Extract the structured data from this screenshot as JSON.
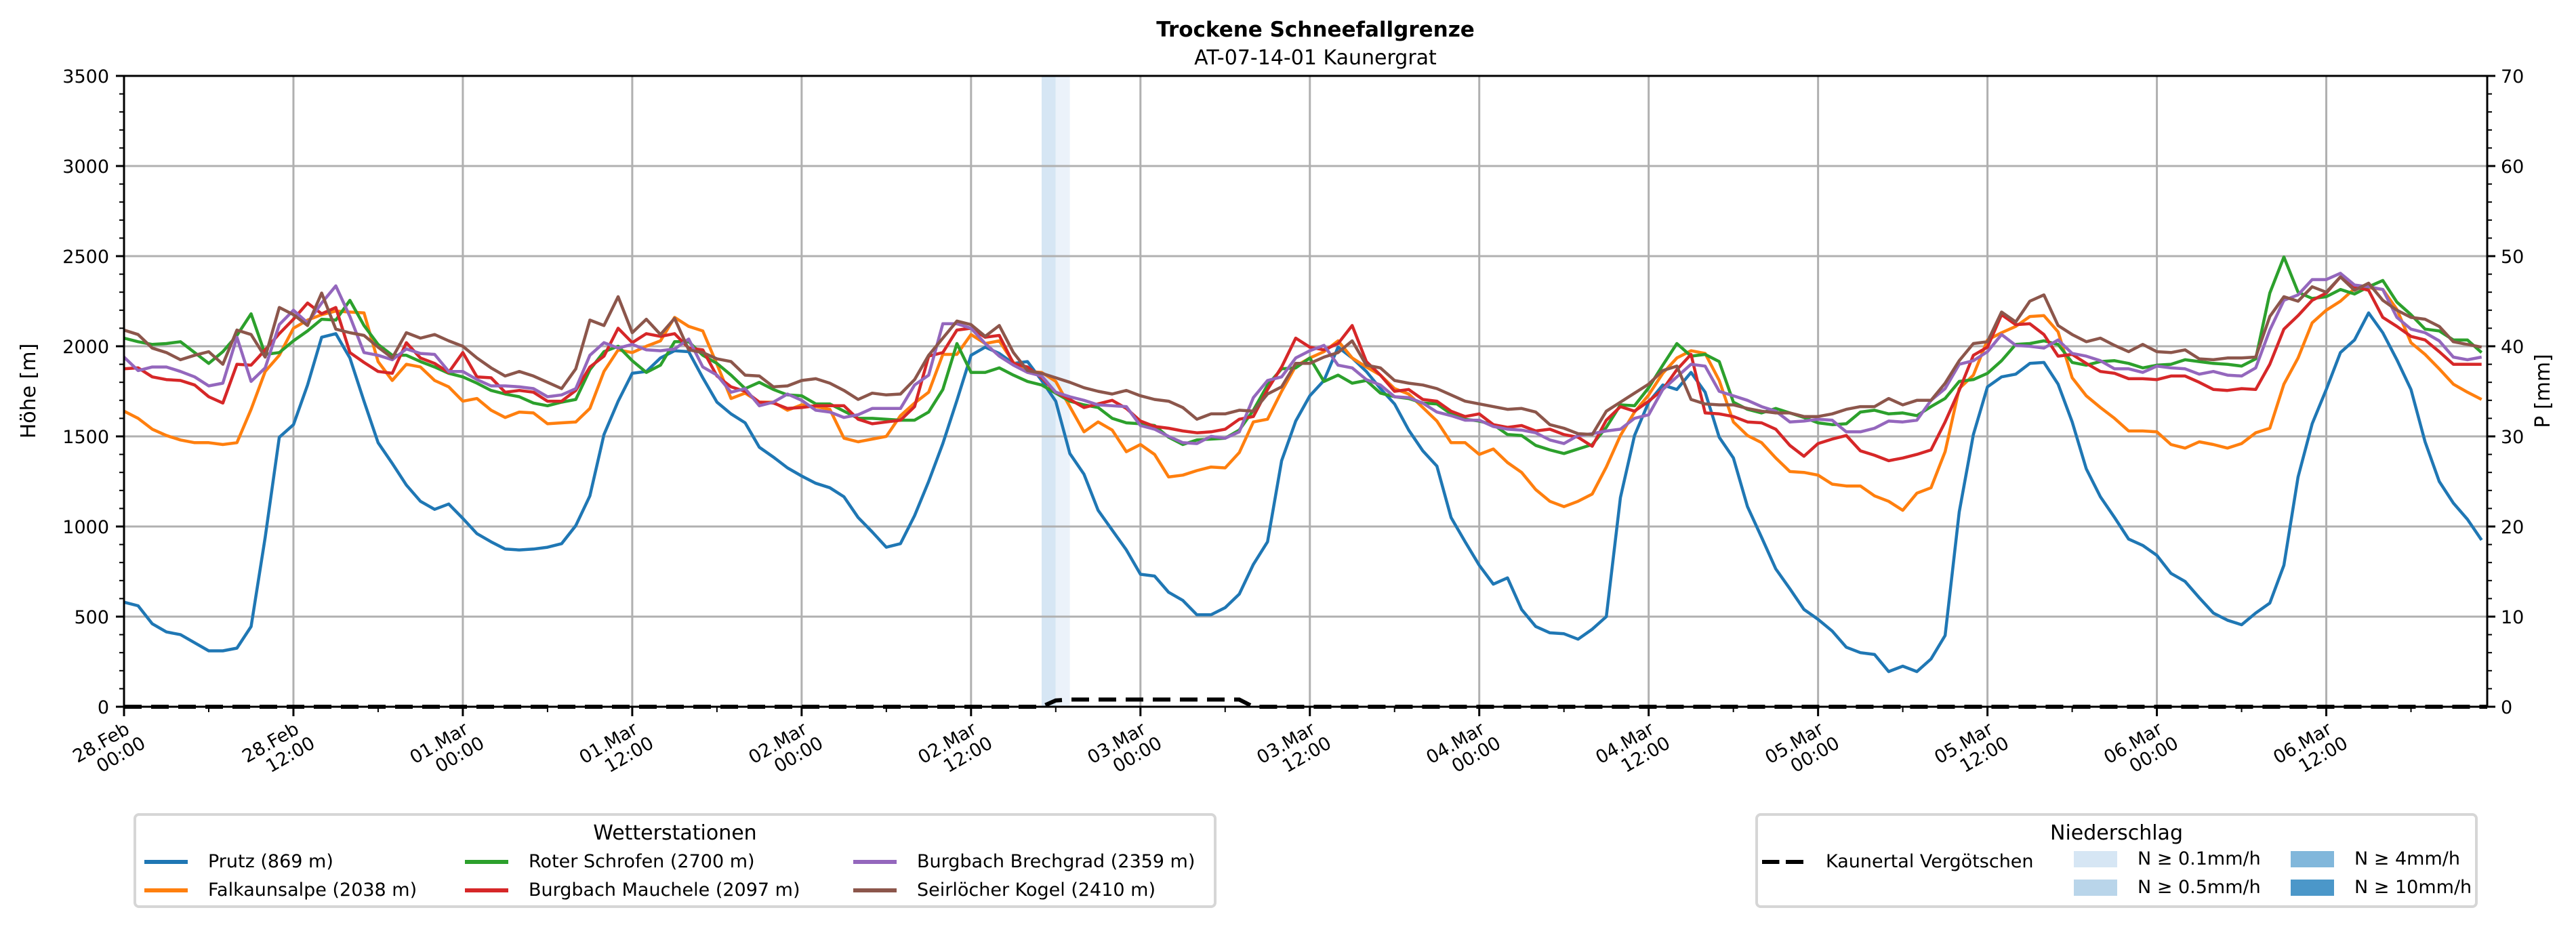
{
  "chart_data": {
    "type": "line",
    "title": "Trockene Schneefallgrenze",
    "subtitle": "AT-07-14-01 Kaunergrat",
    "ylabel": "Höhe [m]",
    "ylabel_right": "P [mm]",
    "ylim": [
      0,
      3500
    ],
    "ylim_right": [
      0,
      70
    ],
    "yticks": [
      "0",
      "500",
      "1000",
      "1500",
      "2000",
      "2500",
      "3000",
      "3500"
    ],
    "yticks_right": [
      "0",
      "10",
      "20",
      "30",
      "40",
      "50",
      "60",
      "70"
    ],
    "x_unit": "hours since 28.Feb 00:00",
    "xlim": [
      0,
      167.4
    ],
    "xticks": [
      {
        "hour": 0,
        "line1": "28.Feb",
        "line2": "00:00"
      },
      {
        "hour": 12,
        "line1": "28.Feb",
        "line2": "12:00"
      },
      {
        "hour": 24,
        "line1": "01.Mar",
        "line2": "00:00"
      },
      {
        "hour": 36,
        "line1": "01.Mar",
        "line2": "12:00"
      },
      {
        "hour": 48,
        "line1": "02.Mar",
        "line2": "00:00"
      },
      {
        "hour": 60,
        "line1": "02.Mar",
        "line2": "12:00"
      },
      {
        "hour": 72,
        "line1": "03.Mar",
        "line2": "00:00"
      },
      {
        "hour": 84,
        "line1": "03.Mar",
        "line2": "12:00"
      },
      {
        "hour": 96,
        "line1": "04.Mar",
        "line2": "00:00"
      },
      {
        "hour": 108,
        "line1": "04.Mar",
        "line2": "12:00"
      },
      {
        "hour": 120,
        "line1": "05.Mar",
        "line2": "00:00"
      },
      {
        "hour": 132,
        "line1": "05.Mar",
        "line2": "12:00"
      },
      {
        "hour": 144,
        "line1": "06.Mar",
        "line2": "00:00"
      },
      {
        "hour": 156,
        "line1": "06.Mar",
        "line2": "12:00"
      }
    ],
    "grid": true,
    "series": [
      {
        "name": "Prutz (869 m)",
        "color": "#1f77b4",
        "values": [
          580,
          560,
          460,
          415,
          400,
          355,
          310,
          310,
          325,
          445,
          940,
          1495,
          1565,
          1785,
          2050,
          2070,
          1935,
          1695,
          1465,
          1350,
          1230,
          1140,
          1095,
          1125,
          1045,
          960,
          915,
          875,
          870,
          875,
          885,
          905,
          1005,
          1170,
          1510,
          1695,
          1850,
          1860,
          1935,
          1975,
          1970,
          1825,
          1690,
          1625,
          1575,
          1440,
          1385,
          1325,
          1280,
          1240,
          1215,
          1165,
          1050,
          970,
          885,
          905,
          1060,
          1250,
          1460,
          1700,
          1950,
          1995,
          1960,
          1905,
          1915,
          1810,
          1695,
          1405,
          1290,
          1090,
          980,
          870,
          735,
          725,
          635,
          590,
          510,
          510,
          550,
          625,
          790,
          915,
          1365,
          1585,
          1725,
          1810,
          1995,
          1935,
          1860,
          1765,
          1680,
          1535,
          1420,
          1335,
          1050,
          915,
          785,
          680,
          715,
          540,
          445,
          410,
          405,
          375,
          430,
          500,
          1160,
          1505,
          1690,
          1785,
          1760,
          1855,
          1745,
          1495,
          1380,
          1110,
          940,
          765,
          655,
          540,
          485,
          420,
          330,
          300,
          290,
          195,
          225,
          195,
          265,
          395,
          1080,
          1510,
          1775,
          1830,
          1845,
          1905,
          1910,
          1790,
          1580,
          1320,
          1165,
          1050,
          930,
          895,
          840,
          740,
          695,
          605,
          520,
          480,
          455,
          520,
          575,
          785,
          1275,
          1570,
          1760,
          1965,
          2035,
          2185,
          2075,
          1925,
          1760,
          1470,
          1250,
          1130,
          1040,
          925
        ]
      },
      {
        "name": "Falkaunsalpe (2038 m)",
        "color": "#ff7f0e",
        "values": [
          1640,
          1600,
          1540,
          1505,
          1480,
          1465,
          1465,
          1455,
          1465,
          1650,
          1860,
          1950,
          2100,
          2145,
          2175,
          2195,
          2190,
          2185,
          1915,
          1810,
          1900,
          1885,
          1810,
          1775,
          1695,
          1710,
          1645,
          1605,
          1635,
          1630,
          1570,
          1575,
          1580,
          1655,
          1860,
          1980,
          1965,
          2000,
          2030,
          2160,
          2110,
          2085,
          1900,
          1710,
          1740,
          1690,
          1690,
          1645,
          1675,
          1665,
          1650,
          1490,
          1470,
          1485,
          1500,
          1615,
          1685,
          1745,
          1955,
          1955,
          2065,
          2015,
          2030,
          1910,
          1860,
          1855,
          1805,
          1665,
          1525,
          1580,
          1535,
          1415,
          1455,
          1400,
          1275,
          1285,
          1310,
          1330,
          1325,
          1410,
          1580,
          1595,
          1750,
          1890,
          1935,
          1970,
          2030,
          1935,
          1885,
          1840,
          1765,
          1735,
          1660,
          1585,
          1465,
          1465,
          1400,
          1430,
          1355,
          1300,
          1205,
          1140,
          1110,
          1140,
          1180,
          1330,
          1505,
          1635,
          1730,
          1850,
          1935,
          1975,
          1960,
          1810,
          1580,
          1505,
          1465,
          1380,
          1305,
          1300,
          1285,
          1235,
          1225,
          1225,
          1170,
          1140,
          1090,
          1185,
          1215,
          1415,
          1765,
          1840,
          2035,
          2075,
          2110,
          2165,
          2170,
          2080,
          1825,
          1725,
          1660,
          1600,
          1530,
          1530,
          1525,
          1455,
          1435,
          1470,
          1455,
          1435,
          1460,
          1520,
          1545,
          1790,
          1935,
          2130,
          2200,
          2250,
          2320,
          2325,
          2315,
          2205,
          2020,
          1955,
          1875,
          1790,
          1745,
          1705
        ]
      },
      {
        "name": "Roter Schrofen (2700 m)",
        "color": "#2ca02c",
        "values": [
          2045,
          2025,
          2010,
          2015,
          2025,
          1965,
          1905,
          1970,
          2060,
          2180,
          1955,
          1965,
          2030,
          2085,
          2150,
          2145,
          2255,
          2115,
          2010,
          1950,
          1950,
          1915,
          1885,
          1850,
          1830,
          1795,
          1755,
          1735,
          1720,
          1685,
          1670,
          1690,
          1705,
          1870,
          1970,
          2000,
          1920,
          1855,
          1895,
          2025,
          2025,
          1950,
          1905,
          1840,
          1765,
          1800,
          1760,
          1730,
          1725,
          1680,
          1680,
          1640,
          1600,
          1600,
          1595,
          1590,
          1590,
          1635,
          1760,
          2015,
          1855,
          1855,
          1880,
          1840,
          1805,
          1785,
          1740,
          1695,
          1675,
          1660,
          1600,
          1575,
          1570,
          1560,
          1495,
          1455,
          1480,
          1485,
          1490,
          1535,
          1645,
          1785,
          1875,
          1880,
          1935,
          1805,
          1840,
          1795,
          1810,
          1740,
          1720,
          1710,
          1685,
          1680,
          1625,
          1595,
          1585,
          1565,
          1510,
          1505,
          1450,
          1425,
          1405,
          1430,
          1455,
          1550,
          1675,
          1670,
          1770,
          1895,
          2015,
          1945,
          1955,
          1915,
          1690,
          1650,
          1630,
          1655,
          1630,
          1605,
          1575,
          1565,
          1570,
          1635,
          1645,
          1625,
          1630,
          1615,
          1665,
          1710,
          1805,
          1815,
          1850,
          1920,
          2010,
          2015,
          2030,
          2010,
          1910,
          1895,
          1915,
          1920,
          1905,
          1880,
          1895,
          1900,
          1925,
          1915,
          1905,
          1900,
          1890,
          1930,
          2295,
          2495,
          2300,
          2265,
          2275,
          2315,
          2290,
          2330,
          2365,
          2245,
          2175,
          2095,
          2085,
          2035,
          2035,
          1965
        ]
      },
      {
        "name": "Burgbach Mauchele (2097 m)",
        "color": "#d62728",
        "values": [
          1875,
          1880,
          1830,
          1815,
          1810,
          1785,
          1720,
          1685,
          1900,
          1895,
          1980,
          2070,
          2150,
          2240,
          2180,
          2215,
          1965,
          1910,
          1860,
          1850,
          2020,
          1935,
          1905,
          1855,
          1965,
          1830,
          1825,
          1745,
          1755,
          1745,
          1695,
          1695,
          1755,
          1885,
          1945,
          2100,
          2020,
          2070,
          2055,
          2070,
          1990,
          1980,
          1835,
          1775,
          1750,
          1690,
          1685,
          1655,
          1660,
          1670,
          1670,
          1670,
          1595,
          1570,
          1580,
          1590,
          1665,
          1945,
          1965,
          2090,
          2100,
          2050,
          2060,
          1905,
          1885,
          1825,
          1745,
          1705,
          1660,
          1680,
          1700,
          1655,
          1585,
          1555,
          1545,
          1530,
          1520,
          1525,
          1540,
          1595,
          1610,
          1760,
          1885,
          2045,
          1995,
          1980,
          2015,
          2115,
          1915,
          1840,
          1750,
          1760,
          1705,
          1695,
          1640,
          1610,
          1625,
          1565,
          1550,
          1560,
          1530,
          1540,
          1510,
          1495,
          1445,
          1590,
          1665,
          1640,
          1695,
          1760,
          1870,
          1955,
          1630,
          1625,
          1610,
          1580,
          1575,
          1540,
          1450,
          1390,
          1460,
          1485,
          1505,
          1420,
          1395,
          1365,
          1380,
          1400,
          1425,
          1580,
          1755,
          1950,
          1995,
          2175,
          2120,
          2125,
          2065,
          1945,
          1955,
          1905,
          1860,
          1850,
          1820,
          1820,
          1815,
          1835,
          1835,
          1800,
          1760,
          1755,
          1765,
          1760,
          1900,
          2095,
          2170,
          2255,
          2295,
          2385,
          2330,
          2310,
          2160,
          2110,
          2055,
          2035,
          1970,
          1900,
          1900,
          1900
        ]
      },
      {
        "name": "Burgbach Brechgrad (2359 m)",
        "color": "#9467bd",
        "values": [
          1940,
          1865,
          1885,
          1885,
          1860,
          1830,
          1780,
          1795,
          2050,
          1805,
          1880,
          2120,
          2200,
          2130,
          2240,
          2335,
          2165,
          1965,
          1950,
          1925,
          1985,
          1960,
          1955,
          1860,
          1860,
          1815,
          1780,
          1780,
          1775,
          1765,
          1720,
          1730,
          1765,
          1950,
          2020,
          1990,
          2010,
          1980,
          1975,
          1985,
          2040,
          1885,
          1840,
          1745,
          1765,
          1670,
          1690,
          1735,
          1700,
          1645,
          1635,
          1605,
          1620,
          1655,
          1655,
          1655,
          1785,
          1840,
          2125,
          2125,
          2100,
          2015,
          1945,
          1895,
          1855,
          1835,
          1745,
          1720,
          1700,
          1675,
          1670,
          1665,
          1560,
          1540,
          1500,
          1465,
          1460,
          1500,
          1490,
          1525,
          1715,
          1810,
          1830,
          1935,
          1975,
          2005,
          1895,
          1880,
          1815,
          1785,
          1720,
          1715,
          1685,
          1635,
          1615,
          1590,
          1590,
          1555,
          1540,
          1535,
          1520,
          1480,
          1460,
          1505,
          1515,
          1530,
          1540,
          1600,
          1620,
          1760,
          1830,
          1900,
          1890,
          1750,
          1725,
          1700,
          1665,
          1640,
          1580,
          1585,
          1595,
          1590,
          1525,
          1525,
          1545,
          1585,
          1580,
          1590,
          1700,
          1765,
          1900,
          1920,
          1970,
          2065,
          2005,
          2000,
          1990,
          2035,
          1960,
          1945,
          1920,
          1875,
          1875,
          1855,
          1890,
          1880,
          1875,
          1845,
          1860,
          1840,
          1835,
          1880,
          2090,
          2255,
          2285,
          2370,
          2370,
          2405,
          2340,
          2330,
          2315,
          2160,
          2095,
          2075,
          2030,
          1940,
          1925,
          1940
        ]
      },
      {
        "name": "Seirlöcher Kogel (2410 m)",
        "color": "#8c564b",
        "values": [
          2090,
          2065,
          1990,
          1965,
          1925,
          1950,
          1970,
          1900,
          2090,
          2065,
          1940,
          2215,
          2175,
          2115,
          2295,
          2095,
          2075,
          2060,
          1995,
          1935,
          2075,
          2045,
          2065,
          2030,
          2000,
          1935,
          1880,
          1835,
          1860,
          1835,
          1800,
          1765,
          1875,
          2145,
          2115,
          2275,
          2075,
          2150,
          2065,
          2155,
          1980,
          1965,
          1930,
          1915,
          1840,
          1835,
          1775,
          1780,
          1810,
          1820,
          1795,
          1755,
          1705,
          1740,
          1730,
          1735,
          1815,
          1950,
          2045,
          2140,
          2120,
          2055,
          2115,
          1965,
          1865,
          1850,
          1825,
          1800,
          1770,
          1750,
          1735,
          1755,
          1725,
          1705,
          1695,
          1660,
          1595,
          1625,
          1625,
          1645,
          1640,
          1735,
          1775,
          1905,
          1905,
          1940,
          1965,
          2030,
          1895,
          1880,
          1810,
          1795,
          1785,
          1765,
          1730,
          1695,
          1680,
          1665,
          1650,
          1655,
          1635,
          1565,
          1545,
          1515,
          1510,
          1640,
          1690,
          1740,
          1790,
          1865,
          1890,
          1705,
          1680,
          1675,
          1675,
          1655,
          1640,
          1630,
          1630,
          1610,
          1610,
          1625,
          1650,
          1665,
          1665,
          1710,
          1675,
          1700,
          1700,
          1795,
          1920,
          2015,
          2025,
          2190,
          2135,
          2250,
          2285,
          2115,
          2065,
          2025,
          2045,
          2005,
          1970,
          2010,
          1970,
          1965,
          1980,
          1930,
          1925,
          1935,
          1935,
          1940,
          2165,
          2275,
          2250,
          2330,
          2300,
          2385,
          2310,
          2350,
          2255,
          2200,
          2160,
          2150,
          2110,
          2025,
          2010,
          1995
        ]
      }
    ],
    "precipitation": {
      "name": "Kaunertal Vergötschen",
      "style": "dashed",
      "axis": "right",
      "hours": [
        0,
        65,
        66,
        67,
        79,
        80,
        167.4
      ],
      "values": [
        0,
        0,
        0.7,
        0.8,
        0.8,
        0,
        0
      ]
    },
    "precip_bands": [
      {
        "start": 65,
        "end": 66,
        "color": "#d6e6f4"
      },
      {
        "start": 66,
        "end": 67,
        "color": "#ebf2fa"
      }
    ],
    "legend_stations": {
      "title": "Wetterstationen",
      "placement": "lower-left, below axes"
    },
    "legend_precip": {
      "title": "Niederschlag",
      "placement": "lower-right, below axes",
      "line_label": "Kaunertal Vergötschen",
      "classes": [
        {
          "label": "N ≥ 0.1mm/h",
          "color": "#d6e6f4"
        },
        {
          "label": "N ≥ 0.5mm/h",
          "color": "#b9d5ea"
        },
        {
          "label": "N ≥ 4mm/h",
          "color": "#81b7db"
        },
        {
          "label": "N ≥ 10mm/h",
          "color": "#4b97c9"
        }
      ]
    }
  }
}
